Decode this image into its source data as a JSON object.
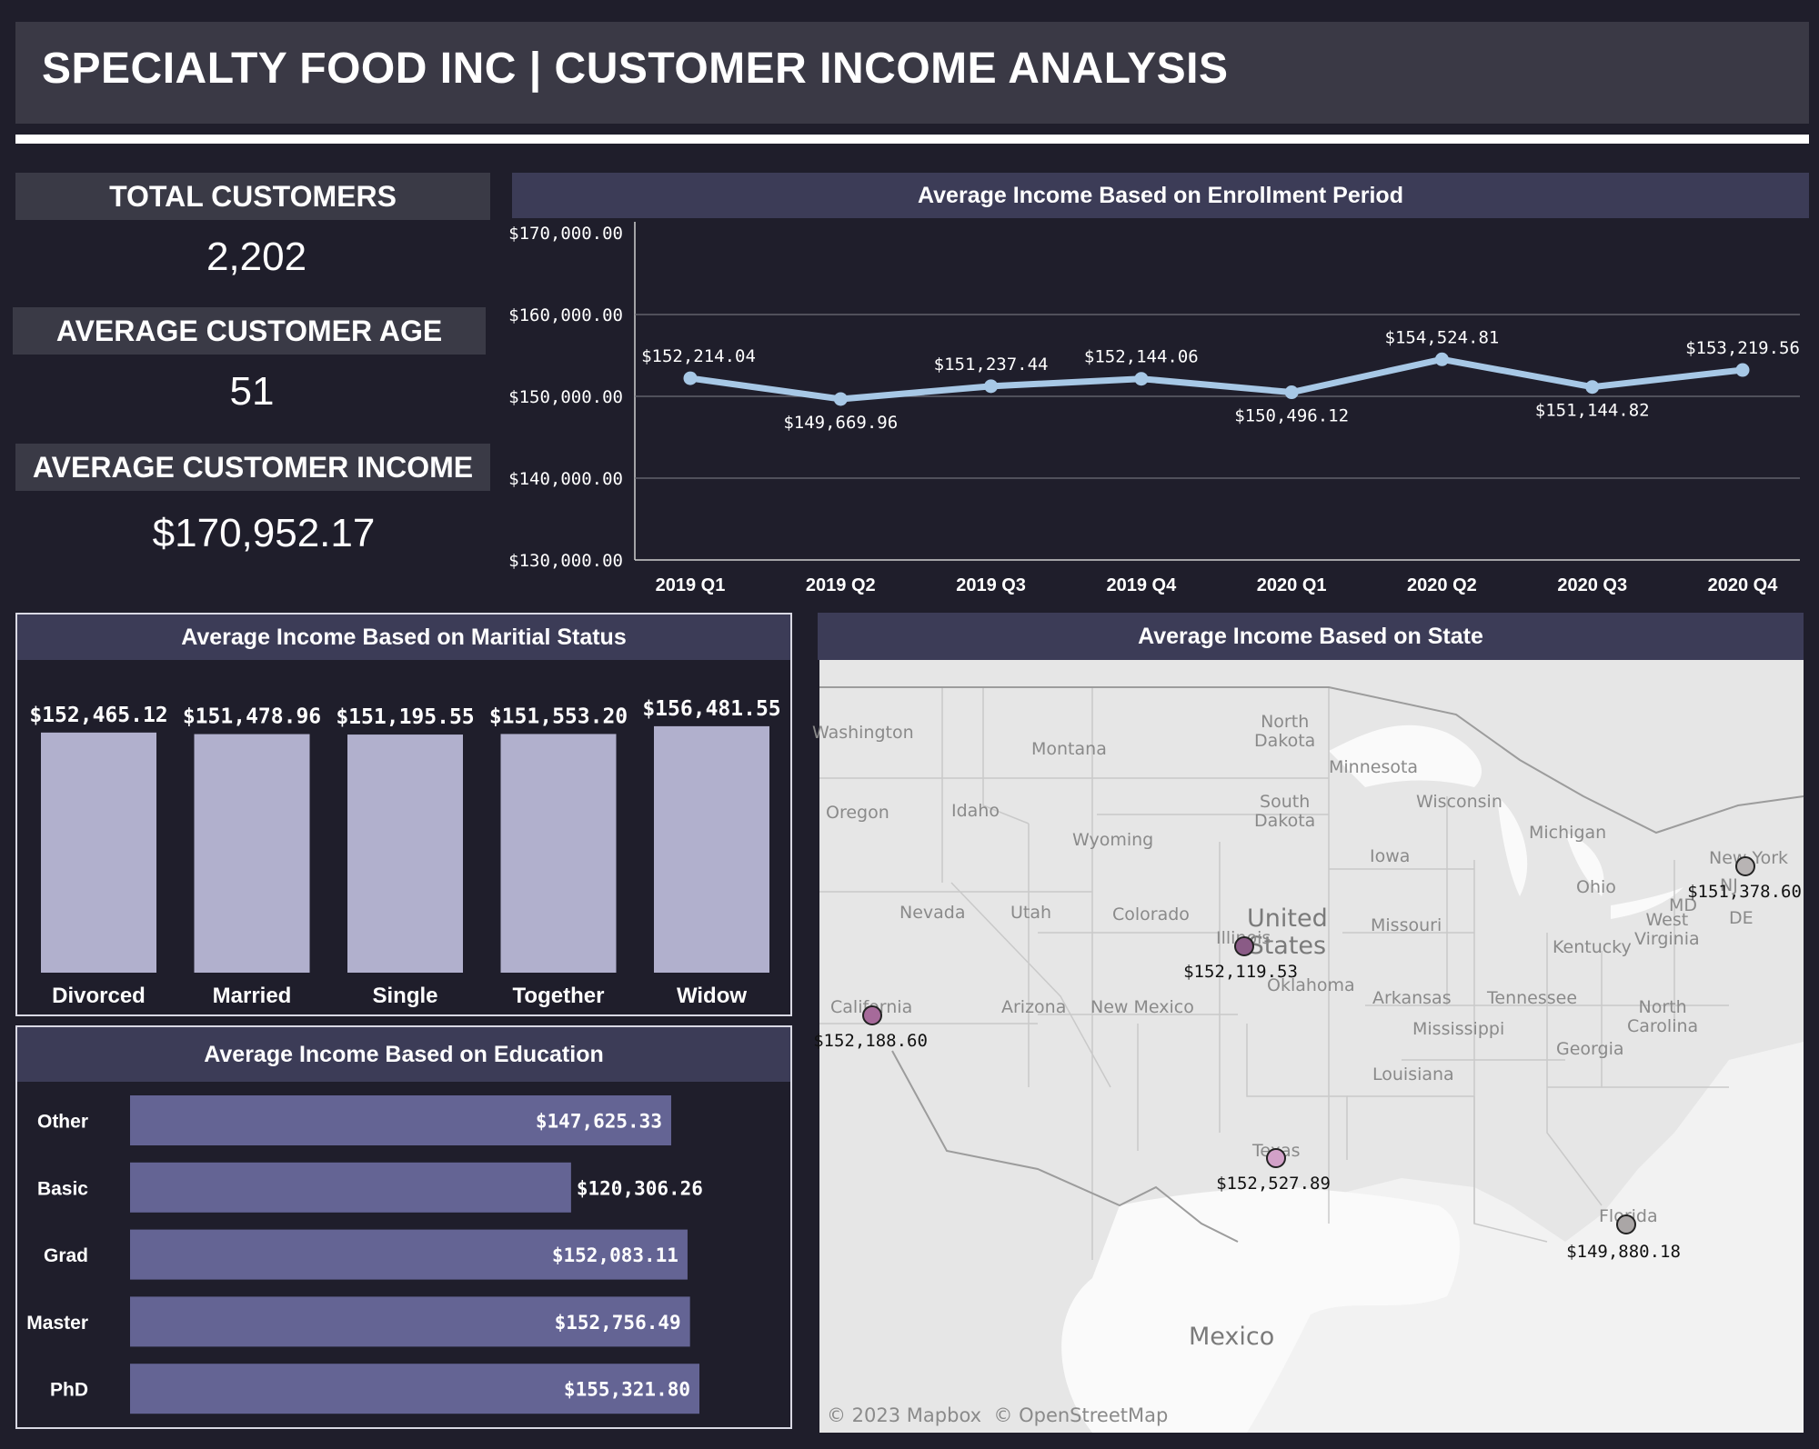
{
  "header": {
    "title": "SPECIALTY FOOD INC | CUSTOMER INCOME ANALYSIS"
  },
  "kpis": {
    "total_customers": {
      "label": "TOTAL CUSTOMERS",
      "value": "2,202"
    },
    "average_age": {
      "label": "AVERAGE CUSTOMER AGE",
      "value": "51"
    },
    "average_income": {
      "label": "AVERAGE CUSTOMER INCOME",
      "value": "$170,952.17"
    }
  },
  "chart_data": [
    {
      "type": "line",
      "title": "Average Income Based on Enrollment Period",
      "categories": [
        "2019 Q1",
        "2019 Q2",
        "2019 Q3",
        "2019 Q4",
        "2020 Q1",
        "2020 Q2",
        "2020 Q3",
        "2020 Q4"
      ],
      "values": [
        152214.04,
        149669.96,
        151237.44,
        152144.06,
        150496.12,
        154524.81,
        151144.82,
        153219.56
      ],
      "data_labels": [
        "$152,214.04",
        "$149,669.96",
        "$151,237.44",
        "$152,144.06",
        "$150,496.12",
        "$154,524.81",
        "$151,144.82",
        "$153,219.56"
      ],
      "y_ticks": [
        {
          "value": 170000,
          "label": "$170,000.00"
        },
        {
          "value": 160000,
          "label": "$160,000.00"
        },
        {
          "value": 150000,
          "label": "$150,000.00"
        },
        {
          "value": 140000,
          "label": "$140,000.00"
        },
        {
          "value": 130000,
          "label": "$130,000.00"
        }
      ],
      "ylim": [
        130000,
        170000
      ],
      "grid": true,
      "color": "#a7c8e6"
    },
    {
      "type": "bar",
      "title": "Average Income Based on Maritial Status",
      "categories": [
        "Divorced",
        "Married",
        "Single",
        "Together",
        "Widow"
      ],
      "values": [
        152465.12,
        151478.96,
        151195.55,
        151553.2,
        156481.55
      ],
      "data_labels": [
        "$152,465.12",
        "$151,478.96",
        "$151,195.55",
        "$151,553.20",
        "$156,481.55"
      ],
      "color": "#b1b0cd"
    },
    {
      "type": "bar",
      "orientation": "horizontal",
      "title": "Average Income Based on Education",
      "categories": [
        "Other",
        "Basic",
        "Grad",
        "Master",
        "PhD"
      ],
      "values": [
        147625.33,
        120306.26,
        152083.11,
        152756.49,
        155321.8
      ],
      "data_labels": [
        "$147,625.33",
        "$120,306.26",
        "$152,083.11",
        "$152,756.49",
        "$155,321.80"
      ],
      "color": "#646494"
    }
  ],
  "map": {
    "title": "Average Income Based on State",
    "attribution": "© 2023 Mapbox  © OpenStreetMap",
    "country_labels": [
      "United States",
      "Mexico"
    ],
    "region_labels": [
      "Washington",
      "Montana",
      "North Dakota",
      "Minnesota",
      "South Dakota",
      "Oregon",
      "Idaho",
      "Wyoming",
      "Wisconsin",
      "Michigan",
      "Iowa",
      "Nevada",
      "Utah",
      "Colorado",
      "Missouri",
      "Ohio",
      "West Virginia",
      "Kentucky",
      "Arizona",
      "New Mexico",
      "Oklahoma",
      "Arkansas",
      "Tennessee",
      "North Carolina",
      "Mississippi",
      "Georgia",
      "Louisiana",
      "MD",
      "NJ",
      "DE"
    ],
    "points": [
      {
        "state": "New York",
        "value": "$151,378.60",
        "color": "#b8b4b4"
      },
      {
        "state": "Illinois",
        "value": "$152,119.53",
        "color": "#8a5b86"
      },
      {
        "state": "California",
        "value": "$152,188.60",
        "color": "#a66a9a"
      },
      {
        "state": "Texas",
        "value": "$152,527.89",
        "color": "#d2a1c8"
      },
      {
        "state": "Florida",
        "value": "$149,880.18",
        "color": "#aaa6a6"
      }
    ]
  }
}
